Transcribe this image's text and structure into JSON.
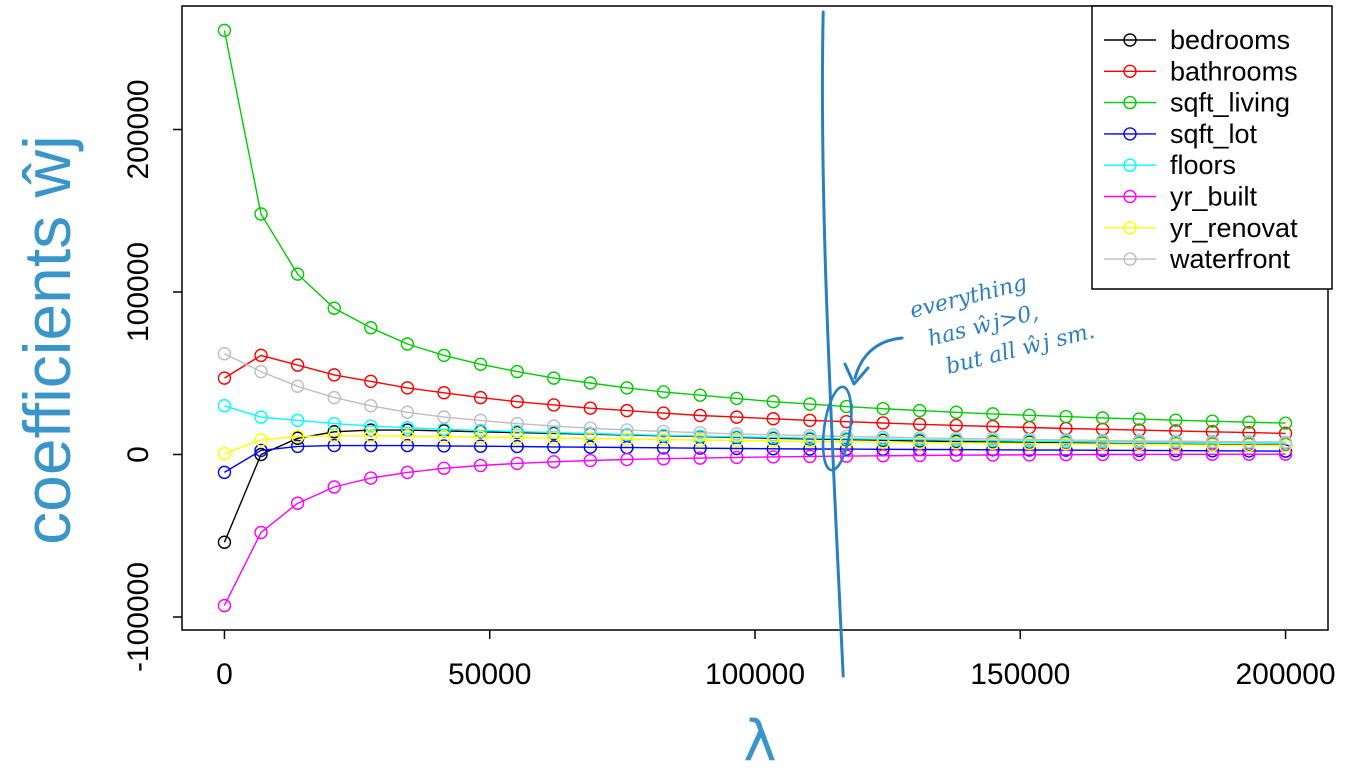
{
  "chart_data": {
    "type": "line",
    "xlabel": "λ",
    "ylabel": "coefficients ŵj",
    "xlim": [
      -8000,
      208000
    ],
    "ylim": [
      -108000,
      276000
    ],
    "x_ticks": [
      0,
      50000,
      100000,
      150000,
      200000
    ],
    "x_tick_labels": [
      "0",
      "50000",
      "100000",
      "150000",
      "200000"
    ],
    "y_ticks": [
      -100000,
      0,
      100000,
      200000
    ],
    "y_tick_labels": [
      "-100000",
      "0",
      "100000",
      "200000"
    ],
    "grid": false,
    "legend_position": "top-right",
    "x": [
      0,
      6897,
      13793,
      20690,
      27586,
      34483,
      41379,
      48276,
      55172,
      62069,
      68966,
      75862,
      82759,
      89655,
      96552,
      103448,
      110345,
      117241,
      124138,
      131034,
      137931,
      144828,
      151724,
      158621,
      165517,
      172414,
      179310,
      186207,
      193103,
      200000
    ],
    "series": [
      {
        "name": "bedrooms",
        "color": "#000000",
        "values": [
          -54000,
          0,
          10000,
          14000,
          15000,
          15000,
          14500,
          14000,
          13500,
          13000,
          12500,
          12000,
          11500,
          11000,
          10500,
          10000,
          9600,
          9200,
          8800,
          8400,
          8000,
          7700,
          7400,
          7100,
          6800,
          6500,
          6300,
          6100,
          5900,
          5700
        ]
      },
      {
        "name": "bathrooms",
        "color": "#ff0000",
        "values": [
          47000,
          61000,
          55000,
          49000,
          45000,
          41000,
          38000,
          35000,
          32500,
          30500,
          28500,
          27000,
          25500,
          24000,
          23000,
          22000,
          21000,
          20200,
          19400,
          18600,
          17900,
          17200,
          16600,
          16000,
          15500,
          15000,
          14500,
          14000,
          13500,
          13000
        ]
      },
      {
        "name": "sqft_living",
        "color": "#00cd00",
        "values": [
          261000,
          148000,
          111000,
          90000,
          78000,
          68000,
          61000,
          55500,
          51000,
          47000,
          44000,
          41000,
          38500,
          36500,
          34500,
          32500,
          31000,
          29500,
          28200,
          27000,
          26000,
          25000,
          24100,
          23300,
          22500,
          21800,
          21100,
          20500,
          19900,
          19300
        ]
      },
      {
        "name": "sqft_lot",
        "color": "#0000ff",
        "values": [
          -11000,
          2500,
          5000,
          5500,
          5500,
          5500,
          5300,
          5100,
          4900,
          4700,
          4500,
          4300,
          4100,
          3900,
          3700,
          3500,
          3400,
          3300,
          3200,
          3100,
          3000,
          2900,
          2800,
          2700,
          2600,
          2500,
          2400,
          2300,
          2200,
          2100
        ]
      },
      {
        "name": "floors",
        "color": "#00ffff",
        "values": [
          30000,
          23000,
          21000,
          19000,
          17500,
          16500,
          15500,
          14800,
          14100,
          13500,
          12900,
          12300,
          11800,
          11300,
          10900,
          10500,
          10100,
          9700,
          9400,
          9100,
          8800,
          8500,
          8300,
          8000,
          7800,
          7600,
          7400,
          7200,
          7000,
          6800
        ]
      },
      {
        "name": "yr_built",
        "color": "#ff00ff",
        "values": [
          -93000,
          -48000,
          -30000,
          -20000,
          -14500,
          -11000,
          -8500,
          -6800,
          -5500,
          -4500,
          -3700,
          -3100,
          -2600,
          -2200,
          -1800,
          -1500,
          -1200,
          -1000,
          -800,
          -600,
          -450,
          -300,
          -200,
          -100,
          0,
          50,
          100,
          150,
          200,
          250
        ]
      },
      {
        "name": "yr_renovat",
        "color": "#ffff00",
        "values": [
          500,
          9000,
          11000,
          11500,
          11500,
          11300,
          11000,
          10700,
          10400,
          10100,
          9800,
          9500,
          9200,
          8900,
          8600,
          8300,
          8000,
          7800,
          7600,
          7400,
          7200,
          7000,
          6800,
          6600,
          6400,
          6200,
          6000,
          5800,
          5600,
          5400
        ]
      },
      {
        "name": "waterfront",
        "color": "#bebebe",
        "values": [
          62000,
          51000,
          42000,
          35000,
          30000,
          26000,
          23000,
          21000,
          19000,
          17500,
          16200,
          15100,
          14200,
          13400,
          12700,
          12100,
          11600,
          11100,
          10700,
          10300,
          9900,
          9600,
          9300,
          9000,
          8700,
          8400,
          8200,
          8000,
          7800,
          7600
        ]
      }
    ],
    "annotation": {
      "lambda_marker": 117000,
      "lines": [
        "everything",
        "has ŵj>0,",
        "but all ŵj sm."
      ]
    }
  },
  "colors": {
    "annotation": "#2a7fc0",
    "axis_title": "#3a96c8"
  }
}
